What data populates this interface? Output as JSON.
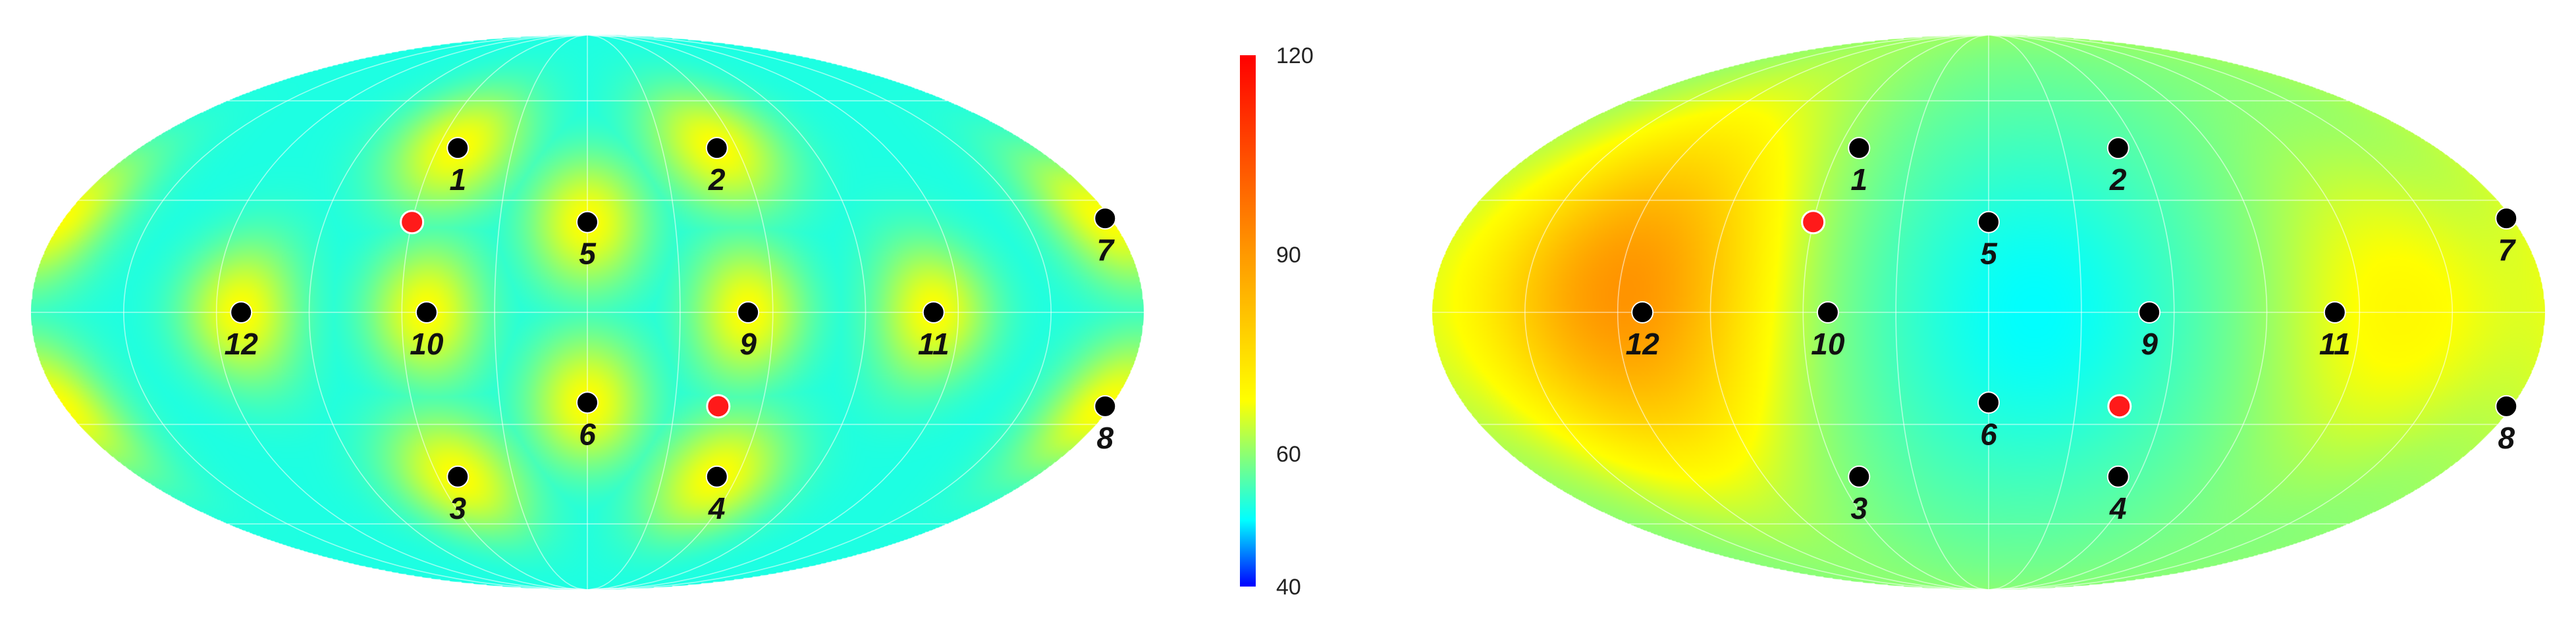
{
  "chart_data": [
    {
      "type": "heatmap",
      "projection": "mollweide",
      "title": "",
      "colormap": "blue-cyan-yellow-orange-red",
      "markers": [
        {
          "label": "1",
          "lon": -52,
          "lat": 45
        },
        {
          "label": "2",
          "lon": 52,
          "lat": 45
        },
        {
          "label": "3",
          "lon": -52,
          "lat": -45
        },
        {
          "label": "4",
          "lon": 52,
          "lat": -45
        },
        {
          "label": "5",
          "lon": 0,
          "lat": 24
        },
        {
          "label": "6",
          "lon": 0,
          "lat": -24
        },
        {
          "label": "7",
          "lon": 178,
          "lat": 25
        },
        {
          "label": "8",
          "lon": 178,
          "lat": -25
        },
        {
          "label": "9",
          "lon": 52,
          "lat": 0
        },
        {
          "label": "10",
          "lon": -52,
          "lat": 0
        },
        {
          "label": "11",
          "lon": 112,
          "lat": 0
        },
        {
          "label": "12",
          "lon": -112,
          "lat": 0
        }
      ],
      "special_points": [
        {
          "lon": -60,
          "lat": 24
        },
        {
          "lon": 45,
          "lat": -25
        }
      ]
    },
    {
      "type": "heatmap",
      "projection": "mollweide",
      "title": "",
      "colormap": "blue-cyan-yellow-orange-red",
      "markers": [
        {
          "label": "1",
          "lon": -52,
          "lat": 45
        },
        {
          "label": "2",
          "lon": 52,
          "lat": 45
        },
        {
          "label": "3",
          "lon": -52,
          "lat": -45
        },
        {
          "label": "4",
          "lon": 52,
          "lat": -45
        },
        {
          "label": "5",
          "lon": 0,
          "lat": 24
        },
        {
          "label": "6",
          "lon": 0,
          "lat": -24
        },
        {
          "label": "7",
          "lon": 178,
          "lat": 25
        },
        {
          "label": "8",
          "lon": 178,
          "lat": -25
        },
        {
          "label": "9",
          "lon": 52,
          "lat": 0
        },
        {
          "label": "10",
          "lon": -52,
          "lat": 0
        },
        {
          "label": "11",
          "lon": 112,
          "lat": 0
        },
        {
          "label": "12",
          "lon": -112,
          "lat": 0
        }
      ],
      "special_points": [
        {
          "lon": -60,
          "lat": 24
        },
        {
          "lon": 45,
          "lat": -25
        }
      ]
    }
  ],
  "colorbar": {
    "min": 40,
    "max": 120,
    "ticks": [
      {
        "value": 120,
        "label": "120"
      },
      {
        "value": 90,
        "label": "90"
      },
      {
        "value": 60,
        "label": "60"
      },
      {
        "value": 40,
        "label": "40"
      }
    ],
    "stops": [
      {
        "value": 40,
        "color": "#0000ff"
      },
      {
        "value": 50,
        "color": "#00ffff"
      },
      {
        "value": 68,
        "color": "#ffff00"
      },
      {
        "value": 90,
        "color": "#ff9900"
      },
      {
        "value": 120,
        "color": "#ff0000"
      }
    ]
  },
  "colors": {
    "marker": "#000000",
    "special_marker": "#ff1a1a",
    "marker_outline": "#ffffff",
    "graticule": "#ffffff"
  }
}
